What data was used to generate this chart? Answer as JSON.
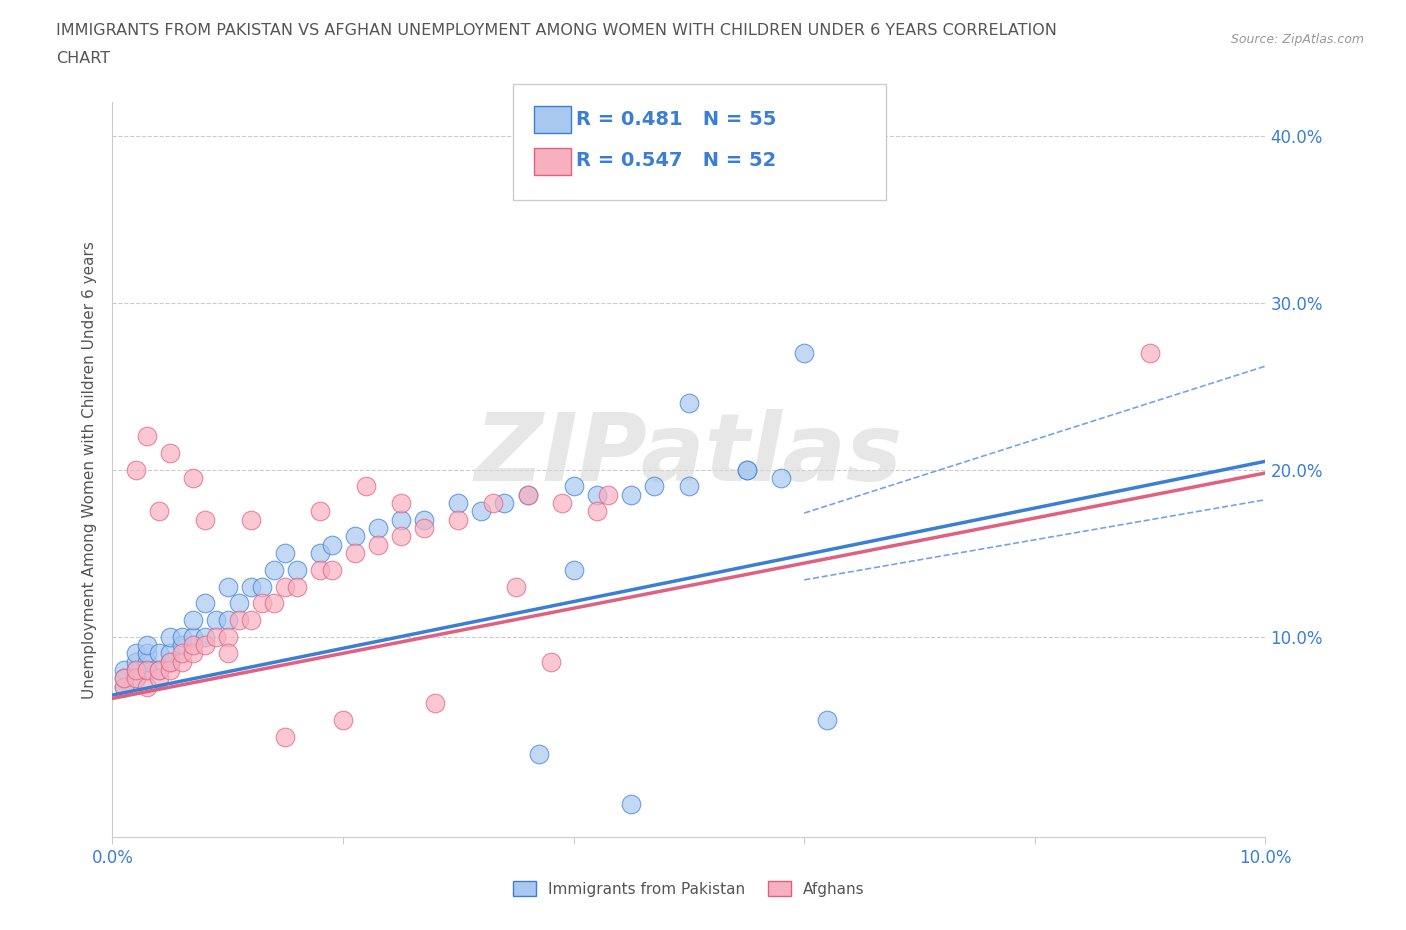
{
  "title_line1": "IMMIGRANTS FROM PAKISTAN VS AFGHAN UNEMPLOYMENT AMONG WOMEN WITH CHILDREN UNDER 6 YEARS CORRELATION",
  "title_line2": "CHART",
  "source_text": "Source: ZipAtlas.com",
  "ylabel": "Unemployment Among Women with Children Under 6 years",
  "xlim": [
    0.0,
    0.1
  ],
  "ylim": [
    -0.02,
    0.42
  ],
  "series1_label": "Immigrants from Pakistan",
  "series2_label": "Afghans",
  "series1_color": "#a8c8f0",
  "series2_color": "#f8b0c0",
  "line1_color": "#3a7fd5",
  "line2_color": "#e06080",
  "background_color": "#ffffff",
  "watermark_text": "ZIPatlas",
  "legend_r1": "R = 0.481",
  "legend_n1": "N = 55",
  "legend_r2": "R = 0.547",
  "legend_n2": "N = 52",
  "pakistan_x": [
    0.001,
    0.001,
    0.001,
    0.002,
    0.002,
    0.002,
    0.002,
    0.003,
    0.003,
    0.003,
    0.003,
    0.004,
    0.004,
    0.005,
    0.005,
    0.005,
    0.006,
    0.006,
    0.007,
    0.007,
    0.008,
    0.008,
    0.009,
    0.01,
    0.01,
    0.011,
    0.012,
    0.013,
    0.014,
    0.015,
    0.016,
    0.018,
    0.019,
    0.021,
    0.023,
    0.025,
    0.027,
    0.03,
    0.032,
    0.034,
    0.036,
    0.04,
    0.042,
    0.045,
    0.047,
    0.05,
    0.055,
    0.058,
    0.062,
    0.06,
    0.05,
    0.04,
    0.037,
    0.055,
    0.045
  ],
  "pakistan_y": [
    0.07,
    0.08,
    0.075,
    0.08,
    0.085,
    0.09,
    0.075,
    0.08,
    0.085,
    0.09,
    0.095,
    0.08,
    0.09,
    0.085,
    0.09,
    0.1,
    0.095,
    0.1,
    0.1,
    0.11,
    0.1,
    0.12,
    0.11,
    0.11,
    0.13,
    0.12,
    0.13,
    0.13,
    0.14,
    0.15,
    0.14,
    0.15,
    0.155,
    0.16,
    0.165,
    0.17,
    0.17,
    0.18,
    0.175,
    0.18,
    0.185,
    0.19,
    0.185,
    0.185,
    0.19,
    0.19,
    0.2,
    0.195,
    0.05,
    0.27,
    0.24,
    0.14,
    0.03,
    0.2,
    0.0
  ],
  "afghan_x": [
    0.001,
    0.001,
    0.002,
    0.002,
    0.003,
    0.003,
    0.004,
    0.004,
    0.005,
    0.005,
    0.006,
    0.006,
    0.007,
    0.007,
    0.008,
    0.009,
    0.01,
    0.011,
    0.012,
    0.013,
    0.014,
    0.015,
    0.016,
    0.018,
    0.019,
    0.021,
    0.023,
    0.025,
    0.027,
    0.03,
    0.033,
    0.036,
    0.039,
    0.042,
    0.043,
    0.035,
    0.028,
    0.02,
    0.015,
    0.01,
    0.007,
    0.005,
    0.003,
    0.002,
    0.004,
    0.008,
    0.012,
    0.018,
    0.025,
    0.09,
    0.038,
    0.022
  ],
  "afghan_y": [
    0.07,
    0.075,
    0.075,
    0.08,
    0.07,
    0.08,
    0.075,
    0.08,
    0.08,
    0.085,
    0.085,
    0.09,
    0.09,
    0.095,
    0.095,
    0.1,
    0.1,
    0.11,
    0.11,
    0.12,
    0.12,
    0.13,
    0.13,
    0.14,
    0.14,
    0.15,
    0.155,
    0.16,
    0.165,
    0.17,
    0.18,
    0.185,
    0.18,
    0.175,
    0.185,
    0.13,
    0.06,
    0.05,
    0.04,
    0.09,
    0.195,
    0.21,
    0.22,
    0.2,
    0.175,
    0.17,
    0.17,
    0.175,
    0.18,
    0.27,
    0.085,
    0.19
  ]
}
